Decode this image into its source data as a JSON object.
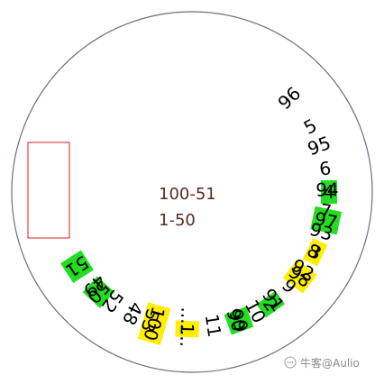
{
  "diagram": {
    "circle_sequence": [
      "96",
      "5",
      "95",
      "6",
      "94",
      "7",
      "93",
      "8",
      "92",
      "9",
      "91",
      "10",
      "90",
      "11",
      ".......",
      "53",
      "48",
      "52",
      "49"
    ],
    "highlighted": [
      {
        "label": "51",
        "color": "#22dd22"
      },
      {
        "label": "50",
        "color": "#22dd22"
      },
      {
        "label": "100",
        "color": "#ffee00"
      },
      {
        "label": "1",
        "color": "#ffee00"
      },
      {
        "label": "99",
        "color": "#22dd22"
      },
      {
        "label": "2",
        "color": "#22dd22"
      },
      {
        "label": "98",
        "color": "#ffee00"
      },
      {
        "label": "3",
        "color": "#ffee00"
      },
      {
        "label": "97",
        "color": "#22dd22"
      },
      {
        "label": "4",
        "color": "#22dd22"
      }
    ],
    "center_lines": [
      "100-51",
      "1-50"
    ],
    "selection_box_color": "#cc2222",
    "circle_color": "#6b6f80"
  },
  "watermark": {
    "text": "牛客@Aulio"
  }
}
